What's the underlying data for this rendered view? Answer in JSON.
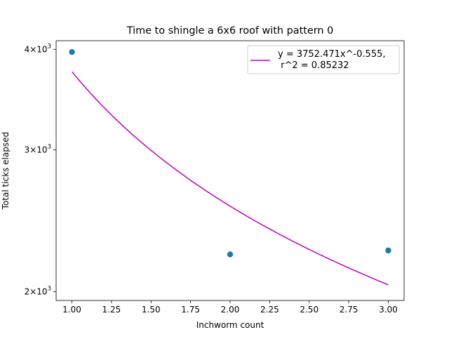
{
  "chart_data": {
    "type": "scatter",
    "title": "Time to shingle a 6x6 roof with pattern 0",
    "xlabel": "Inchworm count",
    "ylabel": "Total ticks elapsed",
    "xlim": [
      0.9,
      3.1
    ],
    "ylim": [
      1950,
      4100
    ],
    "yscale": "log",
    "grid": false,
    "legend_position": "top-right",
    "x_ticks": [
      {
        "value": 1.0,
        "label": "1.00"
      },
      {
        "value": 1.25,
        "label": "1.25"
      },
      {
        "value": 1.5,
        "label": "1.50"
      },
      {
        "value": 1.75,
        "label": "1.75"
      },
      {
        "value": 2.0,
        "label": "2.00"
      },
      {
        "value": 2.25,
        "label": "2.25"
      },
      {
        "value": 2.5,
        "label": "2.50"
      },
      {
        "value": 2.75,
        "label": "2.75"
      },
      {
        "value": 3.0,
        "label": "3.00"
      }
    ],
    "y_ticks": [
      {
        "value": 4000,
        "mantissa": "4",
        "base": "10",
        "exp": "3"
      },
      {
        "value": 3000,
        "mantissa": "3",
        "base": "10",
        "exp": "3"
      },
      {
        "value": 2000,
        "mantissa": "2",
        "base": "10",
        "exp": "3"
      }
    ],
    "points": {
      "color": "#1f77b4",
      "x": [
        1,
        2,
        3
      ],
      "y": [
        3970,
        2225,
        2250
      ]
    },
    "fit": {
      "color": "#bf00bf",
      "a": 3752.471,
      "b": -0.555,
      "x_range": [
        1,
        3
      ],
      "legend_line1": "y = 3752.471x^-0.555,",
      "legend_line2": " r^2 = 0.85232"
    }
  }
}
